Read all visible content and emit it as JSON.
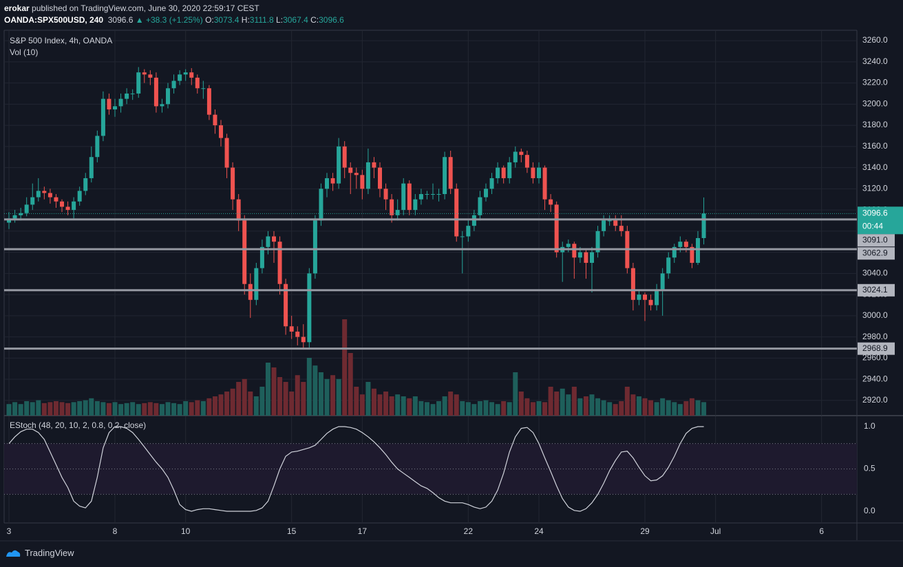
{
  "header": {
    "author": "erokar",
    "published": "published on TradingView.com, June 30, 2020 22:59:17 CEST",
    "symbol": "OANDA:SPX500USD, 240",
    "last": "3096.6",
    "change": "▲ +38.3 (+1.25%)",
    "o_label": "O:",
    "o": "3073.4",
    "h_label": "H:",
    "h": "3111.8",
    "l_label": "L:",
    "l": "3067.4",
    "c_label": "C:",
    "c": "3096.6"
  },
  "footer": {
    "brand": "TradingView"
  },
  "chart_data": [
    {
      "type": "candlestick",
      "title": "S&P 500 Index, 4h, OANDA",
      "up_color": "#26a69a",
      "down_color": "#ef5350",
      "grid": true,
      "xlim": [
        -0.82,
        144
      ],
      "ylim": [
        2905.6,
        3269.8
      ],
      "xticks": [
        {
          "value": 0,
          "label": "3"
        },
        {
          "value": 18,
          "label": "8"
        },
        {
          "value": 30,
          "label": "10"
        },
        {
          "value": 48,
          "label": "15"
        },
        {
          "value": 60,
          "label": "17"
        },
        {
          "value": 78,
          "label": "22"
        },
        {
          "value": 90,
          "label": "24"
        },
        {
          "value": 108,
          "label": "29"
        },
        {
          "value": 120,
          "label": "Jul"
        },
        {
          "value": 138,
          "label": "6"
        }
      ],
      "yticks": [
        {
          "value": 2920,
          "label": "2920.0"
        },
        {
          "value": 2940,
          "label": "2940.0"
        },
        {
          "value": 2960,
          "label": "2960.0"
        },
        {
          "value": 2980,
          "label": "2980.0"
        },
        {
          "value": 3000,
          "label": "3000.0"
        },
        {
          "value": 3020,
          "label": "3020.0"
        },
        {
          "value": 3040,
          "label": "3040.0"
        },
        {
          "value": 3060,
          "label": "3060.0"
        },
        {
          "value": 3080,
          "label": "3080.0"
        },
        {
          "value": 3100,
          "label": "3100.0"
        },
        {
          "value": 3120,
          "label": "3120.0"
        },
        {
          "value": 3140,
          "label": "3140.0"
        },
        {
          "value": 3160,
          "label": "3160.0"
        },
        {
          "value": 3180,
          "label": "3180.0"
        },
        {
          "value": 3200,
          "label": "3200.0"
        },
        {
          "value": 3220,
          "label": "3220.0"
        },
        {
          "value": 3240,
          "label": "3240.0"
        },
        {
          "value": 3260,
          "label": "3260.0"
        }
      ],
      "last_price": 3096.6,
      "countdown": "00:44",
      "levels": [
        {
          "value": 3091,
          "label": "3091.0"
        },
        {
          "value": 3062.9,
          "label": "3062.9"
        },
        {
          "value": 3024.1,
          "label": "3024.1"
        },
        {
          "value": 2968.9,
          "label": "2968.9"
        }
      ],
      "candles": [
        [
          3088,
          3098,
          3082,
          3092
        ],
        [
          3092,
          3100,
          3088,
          3095
        ],
        [
          3095,
          3102,
          3090,
          3097
        ],
        [
          3097,
          3112,
          3094,
          3105
        ],
        [
          3105,
          3125,
          3100,
          3112
        ],
        [
          3112,
          3130,
          3108,
          3118
        ],
        [
          3118,
          3122,
          3110,
          3116
        ],
        [
          3116,
          3120,
          3106,
          3112
        ],
        [
          3112,
          3115,
          3102,
          3108
        ],
        [
          3108,
          3110,
          3098,
          3103
        ],
        [
          3103,
          3108,
          3095,
          3100
        ],
        [
          3100,
          3112,
          3092,
          3108
        ],
        [
          3108,
          3122,
          3104,
          3118
        ],
        [
          3118,
          3135,
          3114,
          3130
        ],
        [
          3130,
          3160,
          3126,
          3150
        ],
        [
          3150,
          3175,
          3145,
          3170
        ],
        [
          3170,
          3212,
          3165,
          3205
        ],
        [
          3205,
          3210,
          3190,
          3195
        ],
        [
          3195,
          3205,
          3188,
          3198
        ],
        [
          3198,
          3210,
          3192,
          3205
        ],
        [
          3205,
          3215,
          3200,
          3210
        ],
        [
          3210,
          3214,
          3204,
          3210
        ],
        [
          3210,
          3235,
          3206,
          3230
        ],
        [
          3230,
          3233,
          3220,
          3228
        ],
        [
          3228,
          3232,
          3218,
          3225
        ],
        [
          3225,
          3230,
          3192,
          3198
        ],
        [
          3198,
          3205,
          3192,
          3200
        ],
        [
          3200,
          3220,
          3196,
          3215
        ],
        [
          3215,
          3228,
          3210,
          3222
        ],
        [
          3222,
          3232,
          3218,
          3228
        ],
        [
          3228,
          3233,
          3222,
          3230
        ],
        [
          3230,
          3234,
          3218,
          3225
        ],
        [
          3225,
          3228,
          3210,
          3215
        ],
        [
          3215,
          3222,
          3205,
          3215
        ],
        [
          3215,
          3218,
          3185,
          3190
        ],
        [
          3190,
          3195,
          3172,
          3180
        ],
        [
          3180,
          3185,
          3160,
          3168
        ],
        [
          3168,
          3172,
          3130,
          3140
        ],
        [
          3140,
          3145,
          3100,
          3110
        ],
        [
          3110,
          3115,
          3080,
          3090
        ],
        [
          3090,
          3095,
          3020,
          3030
        ],
        [
          3030,
          3040,
          2998,
          3015
        ],
        [
          3015,
          3050,
          3010,
          3045
        ],
        [
          3045,
          3072,
          3040,
          3065
        ],
        [
          3065,
          3080,
          3058,
          3075
        ],
        [
          3075,
          3080,
          3050,
          3070
        ],
        [
          3070,
          3075,
          3020,
          3030
        ],
        [
          3030,
          3035,
          2982,
          2990
        ],
        [
          2990,
          3000,
          2978,
          2985
        ],
        [
          2985,
          2990,
          2972,
          2980
        ],
        [
          2980,
          2992,
          2968,
          2975
        ],
        [
          2975,
          3045,
          2970,
          3040
        ],
        [
          3040,
          3095,
          3035,
          3090
        ],
        [
          3090,
          3125,
          3085,
          3120
        ],
        [
          3120,
          3135,
          3112,
          3130
        ],
        [
          3130,
          3135,
          3118,
          3125
        ],
        [
          3125,
          3168,
          3120,
          3160
        ],
        [
          3160,
          3165,
          3130,
          3140
        ],
        [
          3140,
          3145,
          3115,
          3135
        ],
        [
          3135,
          3140,
          3120,
          3133
        ],
        [
          3133,
          3138,
          3110,
          3120
        ],
        [
          3120,
          3158,
          3115,
          3145
        ],
        [
          3145,
          3150,
          3130,
          3140
        ],
        [
          3140,
          3145,
          3112,
          3120
        ],
        [
          3120,
          3125,
          3100,
          3110
        ],
        [
          3110,
          3115,
          3088,
          3095
        ],
        [
          3095,
          3110,
          3090,
          3100
        ],
        [
          3100,
          3130,
          3095,
          3125
        ],
        [
          3125,
          3128,
          3095,
          3100
        ],
        [
          3100,
          3115,
          3095,
          3110
        ],
        [
          3110,
          3120,
          3105,
          3115
        ],
        [
          3115,
          3118,
          3110,
          3115
        ],
        [
          3115,
          3125,
          3110,
          3115
        ],
        [
          3115,
          3120,
          3108,
          3115
        ],
        [
          3115,
          3155,
          3110,
          3150
        ],
        [
          3150,
          3156,
          3115,
          3120
        ],
        [
          3120,
          3125,
          3070,
          3075
        ],
        [
          3075,
          3080,
          3040,
          3075
        ],
        [
          3075,
          3090,
          3070,
          3085
        ],
        [
          3085,
          3100,
          3080,
          3095
        ],
        [
          3095,
          3118,
          3090,
          3112
        ],
        [
          3112,
          3125,
          3108,
          3120
        ],
        [
          3120,
          3135,
          3115,
          3130
        ],
        [
          3130,
          3145,
          3125,
          3140
        ],
        [
          3140,
          3142,
          3125,
          3130
        ],
        [
          3130,
          3150,
          3125,
          3145
        ],
        [
          3145,
          3160,
          3140,
          3155
        ],
        [
          3155,
          3158,
          3145,
          3152
        ],
        [
          3152,
          3156,
          3135,
          3140
        ],
        [
          3140,
          3145,
          3125,
          3130
        ],
        [
          3130,
          3145,
          3125,
          3140
        ],
        [
          3140,
          3142,
          3100,
          3110
        ],
        [
          3110,
          3115,
          3098,
          3105
        ],
        [
          3105,
          3108,
          3055,
          3060
        ],
        [
          3060,
          3070,
          3032,
          3065
        ],
        [
          3065,
          3072,
          3060,
          3068
        ],
        [
          3068,
          3070,
          3035,
          3055
        ],
        [
          3055,
          3065,
          3050,
          3060
        ],
        [
          3060,
          3062,
          3035,
          3050
        ],
        [
          3050,
          3065,
          3022,
          3060
        ],
        [
          3060,
          3085,
          3055,
          3080
        ],
        [
          3080,
          3095,
          3075,
          3090
        ],
        [
          3090,
          3095,
          3085,
          3090
        ],
        [
          3090,
          3095,
          3080,
          3085
        ],
        [
          3085,
          3095,
          3075,
          3080
        ],
        [
          3080,
          3085,
          3040,
          3045
        ],
        [
          3045,
          3050,
          3005,
          3015
        ],
        [
          3015,
          3025,
          3010,
          3020
        ],
        [
          3020,
          3022,
          2995,
          3015
        ],
        [
          3015,
          3020,
          3005,
          3010
        ],
        [
          3010,
          3030,
          3005,
          3025
        ],
        [
          3025,
          3045,
          3000,
          3040
        ],
        [
          3040,
          3060,
          3035,
          3055
        ],
        [
          3055,
          3068,
          3050,
          3065
        ],
        [
          3065,
          3075,
          3060,
          3070
        ],
        [
          3070,
          3072,
          3060,
          3065
        ],
        [
          3065,
          3068,
          3045,
          3050
        ],
        [
          3050,
          3080,
          3048,
          3073.4
        ],
        [
          3073.4,
          3111.8,
          3067.4,
          3096.6
        ]
      ]
    },
    {
      "type": "bar",
      "title": "Vol (10)",
      "up_color": "#1e5f5b",
      "down_color": "#6e2a31",
      "ylim": [
        0,
        400
      ],
      "values": [
        12,
        14,
        12,
        15,
        14,
        16,
        13,
        14,
        15,
        14,
        13,
        14,
        15,
        16,
        18,
        15,
        14,
        13,
        14,
        12,
        13,
        14,
        12,
        13,
        14,
        13,
        12,
        14,
        13,
        12,
        15,
        14,
        16,
        15,
        18,
        20,
        22,
        25,
        28,
        35,
        38,
        25,
        20,
        30,
        55,
        50,
        40,
        35,
        25,
        42,
        35,
        60,
        52,
        45,
        38,
        42,
        38,
        100,
        65,
        30,
        22,
        35,
        28,
        22,
        25,
        20,
        22,
        20,
        18,
        20,
        15,
        14,
        12,
        15,
        20,
        25,
        22,
        15,
        14,
        12,
        15,
        16,
        14,
        12,
        15,
        14,
        45,
        25,
        18,
        14,
        15,
        14,
        30,
        25,
        28,
        22,
        30,
        18,
        20,
        22,
        18,
        16,
        14,
        12,
        15,
        30,
        22,
        20,
        18,
        16,
        14,
        18,
        16,
        14,
        12,
        15,
        18,
        16,
        14
      ]
    },
    {
      "type": "line",
      "title": "EStoch (48, 20, 10, 2, 0.8, 0.2, close)",
      "color": "#d1d4dc",
      "band_fill": "#1e1a2e",
      "bands": [
        0.2,
        0.8
      ],
      "ylim": [
        -0.138,
        1.122
      ],
      "yticks": [
        {
          "value": 0,
          "label": "0.0"
        },
        0.5,
        {
          "value": 1,
          "label": "1.0"
        }
      ],
      "values": [
        0.8,
        0.88,
        0.94,
        0.97,
        0.97,
        0.93,
        0.85,
        0.7,
        0.55,
        0.4,
        0.28,
        0.12,
        0.06,
        0.04,
        0.12,
        0.4,
        0.75,
        0.93,
        1.0,
        1.0,
        0.98,
        0.93,
        0.85,
        0.76,
        0.67,
        0.58,
        0.5,
        0.4,
        0.25,
        0.08,
        0.02,
        0.0,
        0.02,
        0.03,
        0.03,
        0.02,
        0.01,
        0.0,
        0.0,
        0.0,
        0.0,
        0.0,
        0.01,
        0.04,
        0.12,
        0.3,
        0.5,
        0.65,
        0.7,
        0.71,
        0.73,
        0.75,
        0.78,
        0.85,
        0.92,
        0.97,
        1.0,
        1.0,
        0.99,
        0.97,
        0.93,
        0.88,
        0.82,
        0.75,
        0.67,
        0.58,
        0.5,
        0.45,
        0.4,
        0.35,
        0.3,
        0.27,
        0.22,
        0.16,
        0.12,
        0.1,
        0.1,
        0.1,
        0.08,
        0.05,
        0.03,
        0.05,
        0.12,
        0.25,
        0.45,
        0.7,
        0.88,
        0.98,
        0.99,
        0.93,
        0.8,
        0.63,
        0.47,
        0.3,
        0.15,
        0.05,
        0.01,
        0.0,
        0.03,
        0.1,
        0.2,
        0.33,
        0.48,
        0.6,
        0.7,
        0.71,
        0.63,
        0.52,
        0.42,
        0.36,
        0.37,
        0.42,
        0.52,
        0.65,
        0.8,
        0.92,
        0.98,
        1.0,
        1.0
      ]
    }
  ]
}
